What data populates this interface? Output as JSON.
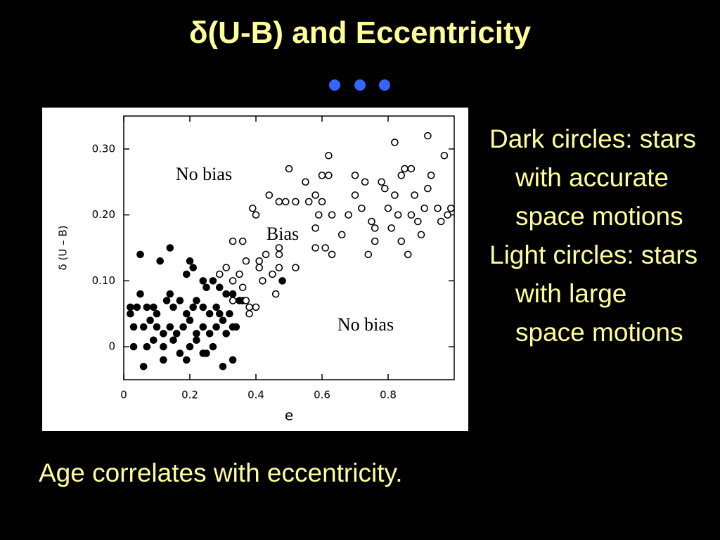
{
  "slide": {
    "title": "δ(U-B) and Eccentricity",
    "bullets": [
      "Dark circles: stars with accurate space motions",
      "Light circles: stars with large space motions"
    ],
    "caption": "Age correlates with eccentricity."
  },
  "chart_data": {
    "type": "scatter",
    "x_label": "e",
    "y_label": "δ (U – B)",
    "annotations": [
      "No bias",
      "Bias",
      "No bias"
    ],
    "xlim": [
      0,
      1
    ],
    "ylim": [
      -0.05,
      0.35
    ],
    "xticks": [
      0,
      0.2,
      0.4,
      0.6,
      0.8
    ],
    "yticks": [
      0,
      {
        "value": 0.1,
        "label": "0.10"
      },
      {
        "value": 0.2,
        "label": "0.20"
      },
      {
        "value": 0.3,
        "label": "0.30"
      }
    ],
    "series": [
      {
        "color": "#000000",
        "x": [
          0.05,
          0.14,
          0.11,
          0.2,
          0.21,
          0.19,
          0.24,
          0.25,
          0.27,
          0.29,
          0.31,
          0.33,
          0.35,
          0.36,
          0.05,
          0.07,
          0.04,
          0.02,
          0.09,
          0.1,
          0.13,
          0.14,
          0.15,
          0.17,
          0.19,
          0.21,
          0.22,
          0.24,
          0.26,
          0.28,
          0.29,
          0.3,
          0.32,
          0.34,
          0.03,
          0.06,
          0.08,
          0.1,
          0.12,
          0.14,
          0.16,
          0.18,
          0.2,
          0.22,
          0.24,
          0.26,
          0.28,
          0.31,
          0.33,
          0.03,
          0.07,
          0.09,
          0.12,
          0.15,
          0.17,
          0.2,
          0.22,
          0.25,
          0.27,
          0.06,
          0.12,
          0.19,
          0.24,
          0.3,
          0.33,
          0.48,
          0.02
        ],
        "values": [
          0.14,
          0.15,
          0.13,
          0.13,
          0.12,
          0.11,
          0.1,
          0.09,
          0.1,
          0.09,
          0.08,
          0.08,
          0.07,
          0.07,
          0.08,
          0.06,
          0.06,
          0.05,
          0.06,
          0.05,
          0.07,
          0.08,
          0.06,
          0.07,
          0.05,
          0.06,
          0.07,
          0.06,
          0.05,
          0.06,
          0.05,
          0.04,
          0.05,
          0.03,
          0.03,
          0.03,
          0.04,
          0.03,
          0.02,
          0.03,
          0.02,
          0.03,
          0.04,
          0.02,
          0.03,
          0.02,
          0.03,
          0.02,
          0.03,
          0,
          0,
          0.01,
          0,
          0.01,
          -0.01,
          0,
          0.01,
          -0.01,
          0,
          -0.03,
          -0.02,
          -0.02,
          -0.01,
          -0.03,
          -0.02,
          0.1,
          0.06
        ]
      },
      {
        "color": "#ffffff",
        "x": [
          0.39,
          0.4,
          0.44,
          0.47,
          0.49,
          0.55,
          0.56,
          0.58,
          0.6,
          0.62,
          0.62,
          0.6,
          0.59,
          0.63,
          0.58,
          0.58,
          0.61,
          0.63,
          0.66,
          0.68,
          0.7,
          0.7,
          0.72,
          0.73,
          0.75,
          0.74,
          0.76,
          0.78,
          0.8,
          0.82,
          0.81,
          0.83,
          0.84,
          0.82,
          0.84,
          0.86,
          0.87,
          0.88,
          0.89,
          0.9,
          0.91,
          0.92,
          0.93,
          0.92,
          0.95,
          0.96,
          0.97,
          0.98,
          0.99,
          0.87,
          0.79,
          0.85,
          0.76,
          0.36,
          0.33,
          0.37,
          0.35,
          0.33,
          0.31,
          0.36,
          0.38,
          0.4,
          0.37,
          0.41,
          0.41,
          0.43,
          0.47,
          0.47,
          0.47,
          0.42,
          0.46,
          0.52,
          0.38,
          0.33,
          0.29,
          0.45,
          0.52,
          0.5
        ],
        "values": [
          0.21,
          0.2,
          0.23,
          0.22,
          0.22,
          0.25,
          0.22,
          0.23,
          0.26,
          0.26,
          0.29,
          0.22,
          0.2,
          0.2,
          0.18,
          0.15,
          0.15,
          0.14,
          0.17,
          0.2,
          0.23,
          0.26,
          0.21,
          0.25,
          0.19,
          0.14,
          0.18,
          0.25,
          0.21,
          0.23,
          0.18,
          0.2,
          0.26,
          0.31,
          0.16,
          0.14,
          0.2,
          0.23,
          0.19,
          0.17,
          0.21,
          0.24,
          0.26,
          0.32,
          0.21,
          0.19,
          0.29,
          0.2,
          0.21,
          0.27,
          0.24,
          0.27,
          0.16,
          0.16,
          0.16,
          0.13,
          0.11,
          0.1,
          0.12,
          0.09,
          0.06,
          0.06,
          0.07,
          0.12,
          0.13,
          0.14,
          0.15,
          0.14,
          0.12,
          0.1,
          0.08,
          0.12,
          0.05,
          0.07,
          0.11,
          0.11,
          0.22,
          0.27
        ]
      }
    ]
  }
}
